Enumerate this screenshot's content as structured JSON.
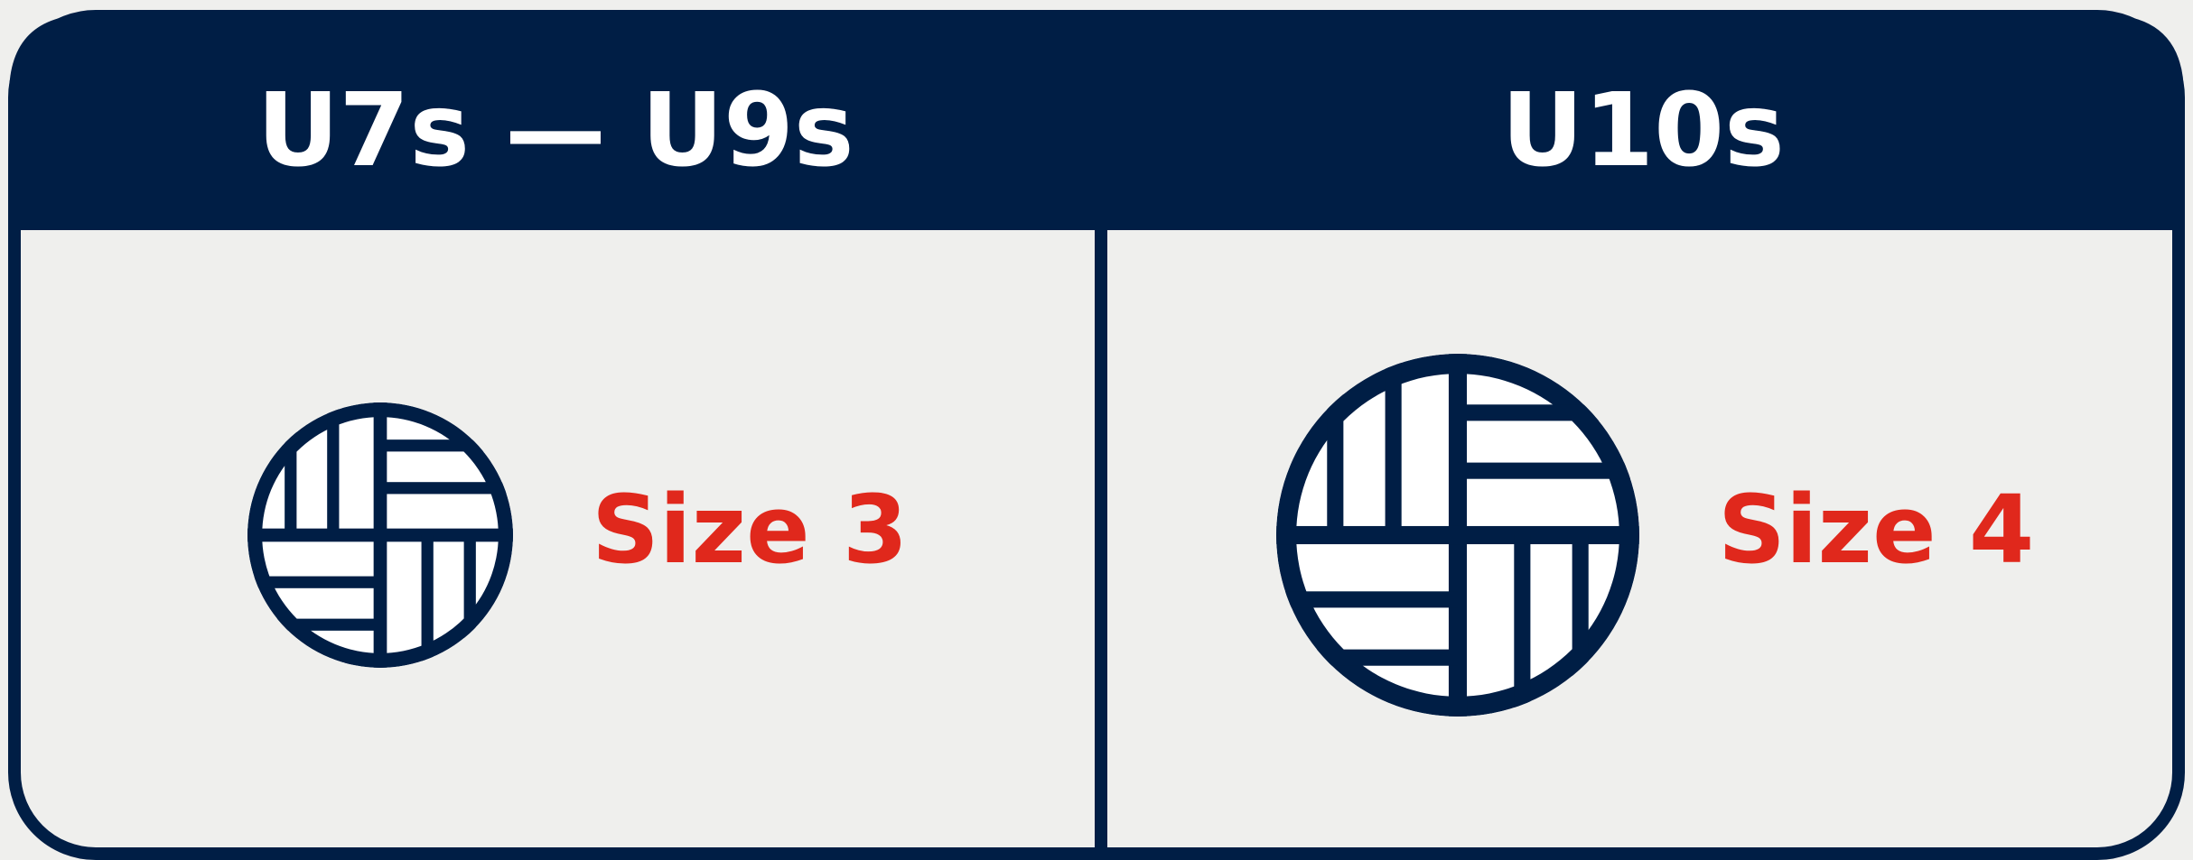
{
  "columns": [
    {
      "heading": "U7s — U9s",
      "label": "Size 3"
    },
    {
      "heading": "U10s",
      "label": "Size 4"
    }
  ]
}
